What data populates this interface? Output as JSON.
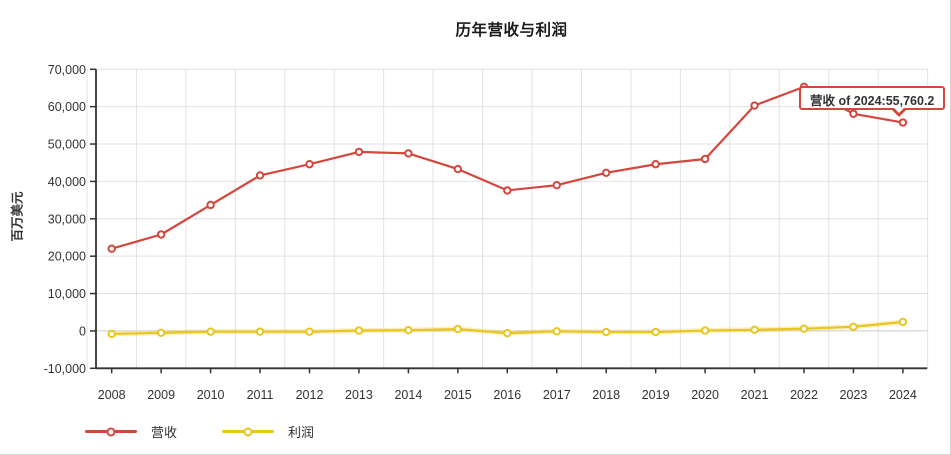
{
  "title": "历年营收与利润",
  "tooltip": {
    "text": "营收 of 2024:55,760.2"
  },
  "y_axis": {
    "label": "百万美元",
    "tick_labels": [
      "70,000",
      "60,000",
      "50,000",
      "40,000",
      "30,000",
      "20,000",
      "10,000",
      "0",
      "-10,000"
    ]
  },
  "colors": {
    "grid": "#e2e2e2",
    "zero_line": "#cccccc",
    "axis": "#333333",
    "label": "#333333",
    "revenue": "#d5463d",
    "profit": "#e8c51f",
    "tooltip_border": "#d5463d"
  },
  "chart_data": {
    "type": "line",
    "title": "历年营收与利润",
    "ylabel": "百万美元",
    "ylim": [
      -10000,
      70000
    ],
    "ystep": 10000,
    "grid": true,
    "legend_position": "bottom",
    "x": [
      2008,
      2009,
      2010,
      2011,
      2012,
      2013,
      2014,
      2015,
      2016,
      2017,
      2018,
      2019,
      2020,
      2021,
      2022,
      2023,
      2024
    ],
    "series": [
      {
        "name": "营收",
        "key": "revenue",
        "color": "#d5463d",
        "values": [
          22000,
          25800,
          33700,
          41600,
          44600,
          47900,
          47500,
          43300,
          37600,
          39000,
          42300,
          44600,
          46000,
          60300,
          65300,
          58100,
          55760.2
        ]
      },
      {
        "name": "利润",
        "key": "profit",
        "color": "#e8c51f",
        "values": [
          -800,
          -500,
          -200,
          -200,
          -200,
          100,
          200,
          500,
          -600,
          -100,
          -300,
          -300,
          100,
          300,
          600,
          1100,
          2400
        ]
      }
    ],
    "annotation": {
      "series": "营收",
      "x": 2024,
      "value": 55760.2,
      "label": "营收 of 2024:55,760.2"
    }
  }
}
